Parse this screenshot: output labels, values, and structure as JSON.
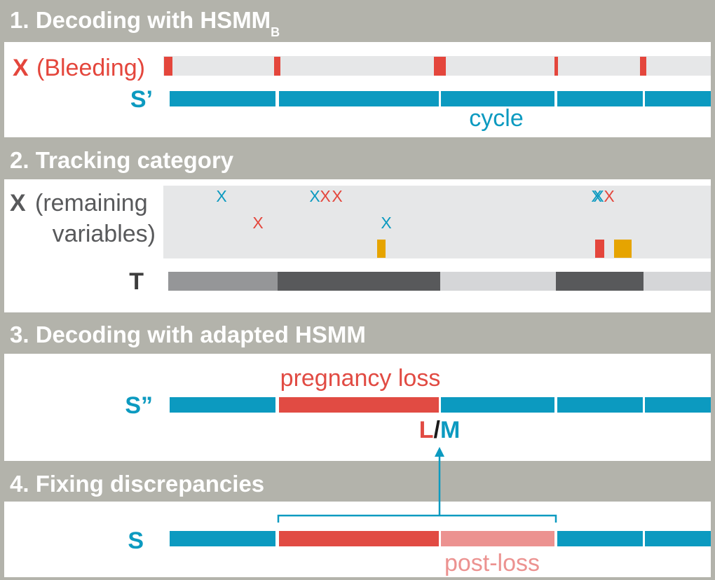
{
  "colors": {
    "cycle": "#0c9ac0",
    "bleeding": "#e4463c",
    "loss": "#e14b43",
    "post_loss": "#ec9290",
    "yellow": "#e6a400",
    "dark": "#58595b",
    "mid": "#959698",
    "light": "#d5d6d8",
    "panel_bg": "#b3b3ab",
    "track_bg": "#e6e7e8",
    "grey_text": "#58595b"
  },
  "panel1": {
    "title": "1. Decoding with HSMM",
    "title_sub": "B",
    "x_letter": "X",
    "x_desc": "(Bleeding)",
    "s_label": "S’",
    "cycle_label": "cycle",
    "icons": {
      "bleed_mark": "red-bleeding-bar"
    }
  },
  "panel2": {
    "title": "2. Tracking category",
    "x_letter": "X",
    "x_desc_line1": "(remaining",
    "x_desc_line2": "variables)",
    "t_label": "T",
    "marks": [
      {
        "char": "X",
        "color": "blue"
      },
      {
        "char": "X",
        "color": "red"
      },
      {
        "char": "X",
        "color": "blue"
      },
      {
        "char": "X",
        "color": "red"
      },
      {
        "char": "X",
        "color": "red"
      },
      {
        "char": "X",
        "color": "blue"
      },
      {
        "char": "X",
        "color": "blue"
      },
      {
        "char": "X",
        "color": "blue"
      },
      {
        "char": "X",
        "color": "red"
      }
    ]
  },
  "panel3": {
    "title": "3. Decoding with adapted HSMM",
    "s_label": "S”",
    "loss_label": "pregnancy loss",
    "lm_L": "L",
    "lm_slash": "/",
    "lm_M": "M"
  },
  "panel4": {
    "title": "4. Fixing discrepancies",
    "s_label": "S",
    "post_loss_label": "post-loss"
  }
}
